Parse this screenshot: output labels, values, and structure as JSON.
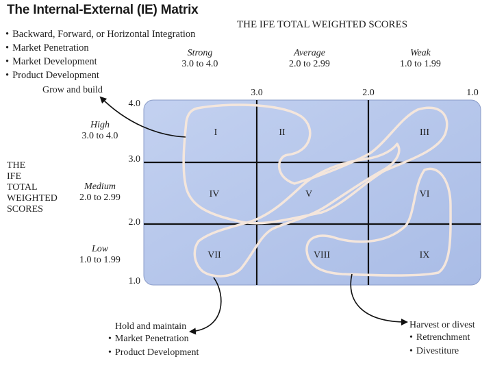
{
  "title": "The Internal-External (IE) Matrix",
  "top_bullets": [
    "Backward, Forward, or Horizontal Integration",
    "Market Penetration",
    "Market Development",
    "Product Development"
  ],
  "ife_header": "THE IFE TOTAL WEIGHTED SCORES",
  "ife_columns": [
    {
      "label": "Strong",
      "range": "3.0 to 4.0"
    },
    {
      "label": "Average",
      "range": "2.0 to 2.99"
    },
    {
      "label": "Weak",
      "range": "1.0 to 1.99"
    }
  ],
  "ife_ticks": [
    "3.0",
    "2.0",
    "1.0"
  ],
  "efe_ticks": [
    "4.0",
    "3.0",
    "2.0",
    "1.0"
  ],
  "efe_header": [
    "THE",
    "IFE",
    "TOTAL",
    "WEIGHTED",
    "SCORES"
  ],
  "efe_rows": [
    {
      "label": "High",
      "range": "3.0 to 4.0"
    },
    {
      "label": "Medium",
      "range": "2.0 to 2.99"
    },
    {
      "label": "Low",
      "range": "1.0 to 1.99"
    }
  ],
  "cells": [
    "I",
    "II",
    "III",
    "IV",
    "V",
    "VI",
    "VII",
    "VIII",
    "IX"
  ],
  "grow": {
    "label": "Grow and build"
  },
  "hold": {
    "label": "Hold and maintain",
    "items": [
      "Market Penetration",
      "Product Development"
    ]
  },
  "harvest": {
    "label": "Harvest or divest",
    "items": [
      "Retrenchment",
      "Divestiture"
    ]
  },
  "colors": {
    "matrix_fill": "#b8c8ec",
    "grid": "#111111",
    "outline": "#f4e6dc"
  }
}
